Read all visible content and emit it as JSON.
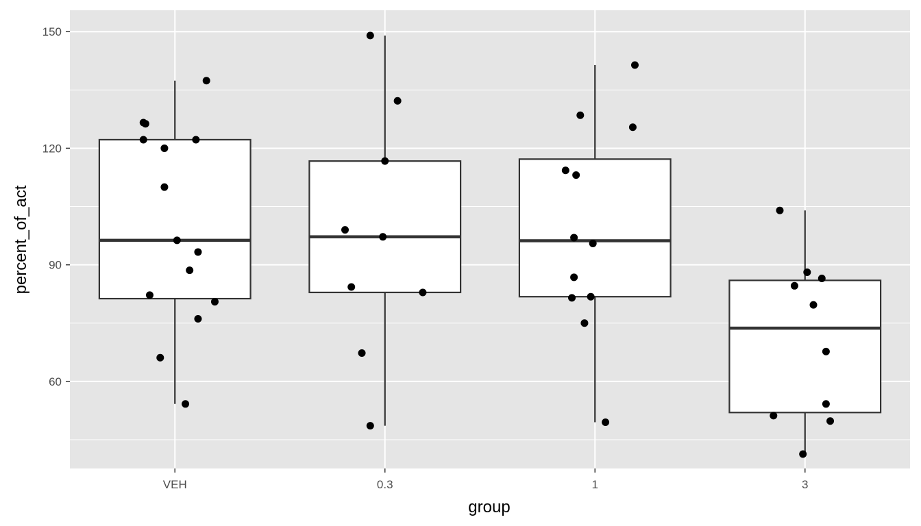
{
  "chart_data": {
    "type": "box",
    "xlabel": "group",
    "ylabel": "percent_of_act",
    "categories": [
      "VEH",
      "0.3",
      "1",
      "3"
    ],
    "yticks": [
      60,
      90,
      120,
      150
    ],
    "ylim": [
      37.6,
      155.5
    ],
    "grid": true,
    "panel_color": "#E5E5E5",
    "box": {
      "fill": "#FFFFFF",
      "stroke": "#333333",
      "point_color": "#000000"
    },
    "boxes": [
      {
        "group": "VEH",
        "whisker_low": 54.2,
        "q1": 81.3,
        "median": 96.3,
        "q3": 122.2,
        "whisker_high": 137.4
      },
      {
        "group": "0.3",
        "whisker_low": 48.6,
        "q1": 82.9,
        "median": 97.2,
        "q3": 116.7,
        "whisker_high": 149.0
      },
      {
        "group": "1",
        "whisker_low": 49.5,
        "q1": 81.8,
        "median": 96.2,
        "q3": 117.2,
        "whisker_high": 141.4
      },
      {
        "group": "3",
        "whisker_low": 41.3,
        "q1": 52.0,
        "median": 73.7,
        "q3": 86.0,
        "whisker_high": 104.0
      }
    ],
    "points": [
      {
        "group": "VEH",
        "offset": -0.15,
        "value": 126.6
      },
      {
        "group": "VEH",
        "offset": -0.14,
        "value": 126.3
      },
      {
        "group": "VEH",
        "offset": -0.15,
        "value": 122.2
      },
      {
        "group": "VEH",
        "offset": -0.05,
        "value": 120.0
      },
      {
        "group": "VEH",
        "offset": 0.1,
        "value": 122.2
      },
      {
        "group": "VEH",
        "offset": 0.15,
        "value": 137.4
      },
      {
        "group": "VEH",
        "offset": -0.05,
        "value": 110.0
      },
      {
        "group": "VEH",
        "offset": 0.01,
        "value": 96.3
      },
      {
        "group": "VEH",
        "offset": 0.11,
        "value": 93.3
      },
      {
        "group": "VEH",
        "offset": 0.07,
        "value": 88.6
      },
      {
        "group": "VEH",
        "offset": -0.12,
        "value": 82.2
      },
      {
        "group": "VEH",
        "offset": 0.19,
        "value": 80.5
      },
      {
        "group": "VEH",
        "offset": 0.11,
        "value": 76.1
      },
      {
        "group": "VEH",
        "offset": -0.07,
        "value": 66.1
      },
      {
        "group": "VEH",
        "offset": 0.05,
        "value": 54.2
      },
      {
        "group": "0.3",
        "offset": -0.07,
        "value": 149.0
      },
      {
        "group": "0.3",
        "offset": 0.06,
        "value": 132.2
      },
      {
        "group": "0.3",
        "offset": 0.0,
        "value": 116.7
      },
      {
        "group": "0.3",
        "offset": -0.19,
        "value": 99.0
      },
      {
        "group": "0.3",
        "offset": -0.01,
        "value": 97.2
      },
      {
        "group": "0.3",
        "offset": -0.16,
        "value": 84.3
      },
      {
        "group": "0.3",
        "offset": 0.18,
        "value": 82.9
      },
      {
        "group": "0.3",
        "offset": -0.11,
        "value": 67.3
      },
      {
        "group": "0.3",
        "offset": -0.07,
        "value": 48.6
      },
      {
        "group": "1",
        "offset": 0.19,
        "value": 141.4
      },
      {
        "group": "1",
        "offset": -0.07,
        "value": 128.5
      },
      {
        "group": "1",
        "offset": 0.18,
        "value": 125.4
      },
      {
        "group": "1",
        "offset": -0.14,
        "value": 114.3
      },
      {
        "group": "1",
        "offset": -0.09,
        "value": 113.1
      },
      {
        "group": "1",
        "offset": -0.1,
        "value": 97.0
      },
      {
        "group": "1",
        "offset": -0.01,
        "value": 95.5
      },
      {
        "group": "1",
        "offset": -0.1,
        "value": 86.8
      },
      {
        "group": "1",
        "offset": -0.11,
        "value": 81.5
      },
      {
        "group": "1",
        "offset": -0.02,
        "value": 81.8
      },
      {
        "group": "1",
        "offset": -0.05,
        "value": 75.0
      },
      {
        "group": "1",
        "offset": 0.05,
        "value": 49.5
      },
      {
        "group": "3",
        "offset": -0.12,
        "value": 104.0
      },
      {
        "group": "3",
        "offset": 0.01,
        "value": 88.1
      },
      {
        "group": "3",
        "offset": -0.05,
        "value": 84.6
      },
      {
        "group": "3",
        "offset": 0.08,
        "value": 86.5
      },
      {
        "group": "3",
        "offset": 0.04,
        "value": 79.7
      },
      {
        "group": "3",
        "offset": 0.1,
        "value": 67.7
      },
      {
        "group": "3",
        "offset": 0.1,
        "value": 54.2
      },
      {
        "group": "3",
        "offset": -0.15,
        "value": 51.2
      },
      {
        "group": "3",
        "offset": 0.12,
        "value": 49.8
      },
      {
        "group": "3",
        "offset": -0.01,
        "value": 41.3
      }
    ]
  }
}
